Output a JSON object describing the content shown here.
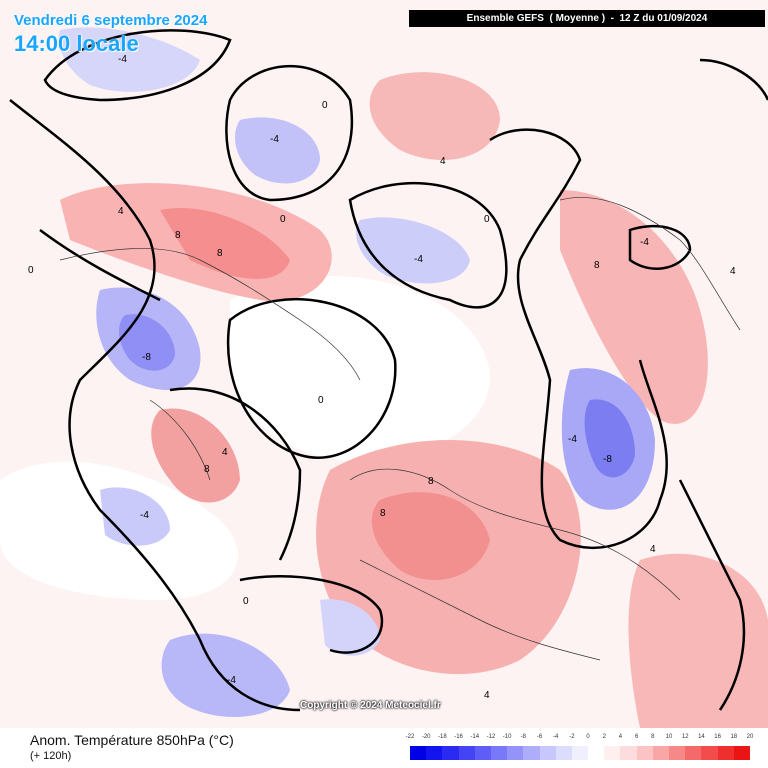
{
  "header": {
    "date": "Vendredi 6 septembre 2024",
    "local_time": "14:00 locale",
    "run_info": "Ensemble GEFS  ( Moyenne )  -  12 Z du 01/09/2024"
  },
  "footer": {
    "parameter": "Anom. Température 850hPa (°C)",
    "lead_time": "(+ 120h)",
    "copyright": "Copyright © 2024 Meteociel.fr"
  },
  "legend": {
    "labels": [
      "-22",
      "-20",
      "-18",
      "-16",
      "-14",
      "-12",
      "-10",
      "-8",
      "-6",
      "-4",
      "-2",
      "0",
      "2",
      "4",
      "6",
      "8",
      "10",
      "12",
      "14",
      "16",
      "18",
      "20"
    ],
    "colors": [
      "#0000e6",
      "#1414ee",
      "#2a2af2",
      "#4444f4",
      "#5e5ef6",
      "#7878f8",
      "#9393fa",
      "#adadfb",
      "#c7c7fc",
      "#dcdcfd",
      "#efeffe",
      "#ffffff",
      "#ffefef",
      "#fcdcdc",
      "#fbc3c3",
      "#f9a6a6",
      "#f78888",
      "#f46a6a",
      "#f24c4c",
      "#ef2e2e",
      "#ea1414"
    ]
  },
  "map_labels": [
    {
      "text": "-4",
      "kind": "cold"
    },
    {
      "text": "-4",
      "kind": "cold"
    },
    {
      "text": "-4",
      "kind": "cold"
    },
    {
      "text": "-8",
      "kind": "cold"
    },
    {
      "text": "-4",
      "kind": "cold"
    },
    {
      "text": "-8",
      "kind": "cold"
    },
    {
      "text": "-4",
      "kind": "cold"
    },
    {
      "text": "-4",
      "kind": "cold"
    },
    {
      "text": "-4",
      "kind": "cold"
    },
    {
      "text": "0",
      "kind": "zero"
    },
    {
      "text": "0",
      "kind": "zero"
    },
    {
      "text": "0",
      "kind": "zero"
    },
    {
      "text": "0",
      "kind": "zero"
    },
    {
      "text": "0",
      "kind": "zero"
    },
    {
      "text": "0",
      "kind": "zero"
    },
    {
      "text": "4",
      "kind": "warm"
    },
    {
      "text": "8",
      "kind": "warm"
    },
    {
      "text": "8",
      "kind": "warm"
    },
    {
      "text": "4",
      "kind": "warm"
    },
    {
      "text": "8",
      "kind": "warm"
    },
    {
      "text": "8",
      "kind": "warm"
    },
    {
      "text": "8",
      "kind": "warm"
    },
    {
      "text": "4",
      "kind": "warm"
    },
    {
      "text": "4",
      "kind": "warm"
    },
    {
      "text": "8",
      "kind": "warm"
    },
    {
      "text": "4",
      "kind": "warm"
    },
    {
      "text": "4",
      "kind": "warm"
    }
  ]
}
